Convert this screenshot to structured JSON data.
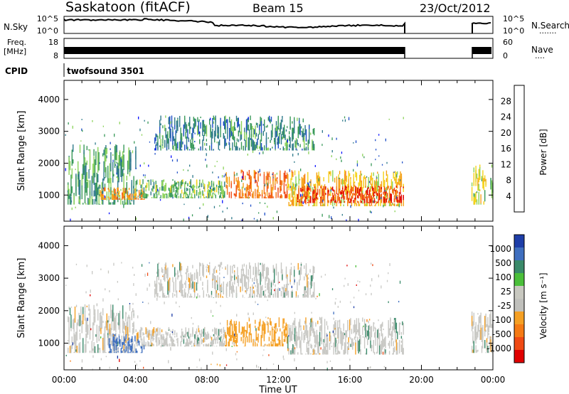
{
  "header": {
    "station": "Saskatoon (fitACF)",
    "beam": "Beam 15",
    "date": "23/Oct/2012"
  },
  "strips": {
    "noise": {
      "left_label": "N.Sky",
      "right_label": "N.Search",
      "right_dots": "·······",
      "left_ticks": [
        "10^5",
        "10^0"
      ],
      "right_ticks": [
        "10^5",
        "10^0"
      ]
    },
    "freq": {
      "left_label_1": "Freq.",
      "left_label_2": "[MHz]",
      "left_ticks": [
        "18",
        "8"
      ],
      "right_label": "Nave",
      "right_dots": "····",
      "right_ticks": [
        "60",
        "0"
      ]
    },
    "cpid": {
      "left_label": "CPID",
      "value": "twofsound 3501"
    }
  },
  "colors": {
    "power": [
      "#0b12ff",
      "#1f4fc8",
      "#2f7a8a",
      "#3a9a5a",
      "#8bd35a",
      "#f5d21a",
      "#f5a21a",
      "#f57a1a",
      "#f04a14",
      "#e00000"
    ],
    "velocity": [
      "#1e3ea8",
      "#3f6fbf",
      "#3a8a6a",
      "#4bbf3a",
      "#c8c8c0",
      "#c0c0bc",
      "#f5a024",
      "#f57a14",
      "#f04a14",
      "#e00000"
    ],
    "gray": "#c8c8c4"
  },
  "chart_data": [
    {
      "type": "heatmap",
      "title": "Power",
      "xlabel": "",
      "ylabel": "Slant Range [km]",
      "xlim": [
        0,
        24
      ],
      "ylim": [
        180,
        4600
      ],
      "yticks": [
        "1000",
        "2000",
        "3000",
        "4000"
      ],
      "colorbar": {
        "label": "Power [dB]",
        "ticks": [
          "4",
          "8",
          "12",
          "16",
          "20",
          "24",
          "28"
        ],
        "range": [
          0,
          30
        ]
      },
      "echo_regions": [
        {
          "t0": 0.2,
          "t1": 4.0,
          "r0": 700,
          "r1": 2600,
          "level": 10
        },
        {
          "t0": 2.0,
          "t1": 4.5,
          "r0": 850,
          "r1": 1250,
          "level": 22
        },
        {
          "t0": 4.0,
          "t1": 9.0,
          "r0": 900,
          "r1": 1500,
          "level": 12
        },
        {
          "t0": 9.0,
          "t1": 12.5,
          "r0": 900,
          "r1": 1800,
          "level": 24
        },
        {
          "t0": 12.5,
          "t1": 19.0,
          "r0": 650,
          "r1": 1800,
          "level": 18
        },
        {
          "t0": 13.0,
          "t1": 19.0,
          "r0": 750,
          "r1": 1300,
          "level": 27
        },
        {
          "t0": 5.0,
          "t1": 14.0,
          "r0": 2400,
          "r1": 3500,
          "level": 8
        },
        {
          "t0": 22.8,
          "t1": 24.0,
          "r0": 700,
          "r1": 2000,
          "level": 15
        }
      ],
      "data_gaps": [
        [
          19.0,
          22.8
        ]
      ]
    },
    {
      "type": "heatmap",
      "title": "Velocity",
      "xlabel": "Time UT",
      "ylabel": "Slant Range [km]",
      "xlim": [
        0,
        24
      ],
      "ylim": [
        180,
        4600
      ],
      "xticks": [
        "00:00",
        "04:00",
        "08:00",
        "12:00",
        "16:00",
        "20:00",
        "00:00"
      ],
      "yticks": [
        "1000",
        "2000",
        "3000",
        "4000"
      ],
      "colorbar": {
        "label": "Velocity [m s⁻¹]",
        "ticks": [
          "1000",
          "500",
          "100",
          "25",
          "-25",
          "-100",
          "-500",
          "-1000"
        ]
      },
      "echo_regions": [
        {
          "t0": 0.2,
          "t1": 4.0,
          "r0": 700,
          "r1": 2200,
          "velocity": 0
        },
        {
          "t0": 2.5,
          "t1": 4.5,
          "r0": 700,
          "r1": 1300,
          "velocity": 300
        },
        {
          "t0": 4.0,
          "t1": 9.0,
          "r0": 900,
          "r1": 1500,
          "velocity": 0
        },
        {
          "t0": 9.0,
          "t1": 12.5,
          "r0": 900,
          "r1": 1800,
          "velocity": -300
        },
        {
          "t0": 12.5,
          "t1": 19.0,
          "r0": 650,
          "r1": 1800,
          "velocity": 0
        },
        {
          "t0": 5.0,
          "t1": 14.0,
          "r0": 2400,
          "r1": 3500,
          "velocity": 0
        },
        {
          "t0": 22.8,
          "t1": 24.0,
          "r0": 700,
          "r1": 2000,
          "velocity": 0
        }
      ],
      "data_gaps": [
        [
          19.0,
          22.8
        ]
      ]
    }
  ]
}
